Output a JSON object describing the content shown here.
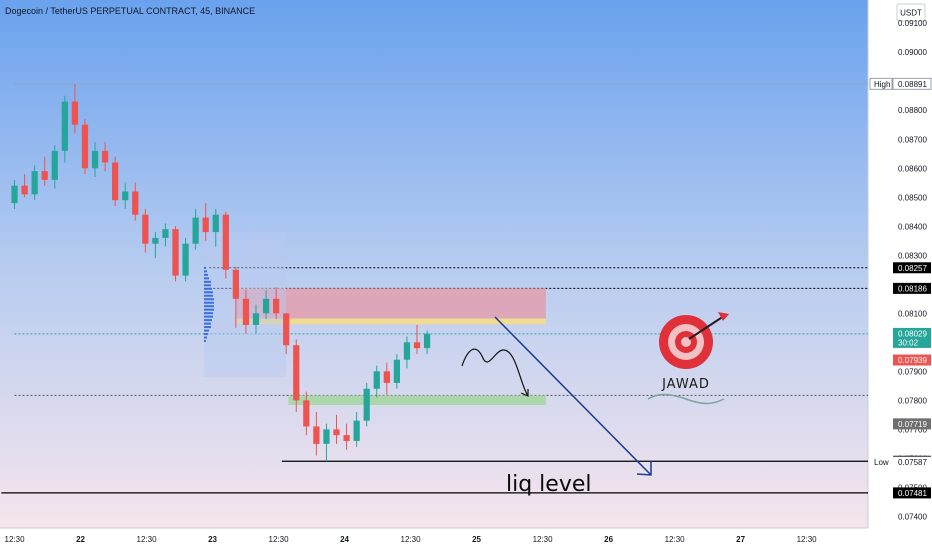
{
  "chart_data": {
    "type": "candlestick",
    "title": "Dogecoin / TetherUS PERPETUAL CONTRACT, 45, BINANCE",
    "currency_button": "USDT",
    "y_ticks": [
      "0.09100",
      "0.09000",
      "0.08900",
      "0.08800",
      "0.08700",
      "0.08600",
      "0.08500",
      "0.08400",
      "0.08300",
      "0.08100",
      "0.07900",
      "0.07800",
      "0.07700",
      "0.07600",
      "0.07500",
      "0.07400"
    ],
    "x_ticks": [
      {
        "t": 0,
        "label": "12:30",
        "bold": false
      },
      {
        "t": 1,
        "label": "22",
        "bold": true
      },
      {
        "t": 2,
        "label": "12:30",
        "bold": false
      },
      {
        "t": 3,
        "label": "23",
        "bold": true
      },
      {
        "t": 4,
        "label": "12:30",
        "bold": false
      },
      {
        "t": 5,
        "label": "24",
        "bold": true
      },
      {
        "t": 6,
        "label": "12:30",
        "bold": false
      },
      {
        "t": 7,
        "label": "25",
        "bold": true
      },
      {
        "t": 8,
        "label": "12:30",
        "bold": false
      },
      {
        "t": 9,
        "label": "26",
        "bold": true
      },
      {
        "t": 10,
        "label": "12:30",
        "bold": false
      },
      {
        "t": 11,
        "label": "27",
        "bold": true
      },
      {
        "t": 12,
        "label": "12:30",
        "bold": false
      }
    ],
    "price_labels": [
      {
        "label": "High",
        "value": "0.08891",
        "bg": "#ffffff",
        "fg": "#131722",
        "border": "#9aa0aa"
      },
      {
        "value": "0.08257",
        "bg": "#000000",
        "fg": "#ffffff"
      },
      {
        "value": "0.08186",
        "bg": "#000000",
        "fg": "#ffffff"
      },
      {
        "value": "0.08029",
        "sub": "30:02",
        "bg": "#26a69a",
        "fg": "#ffffff"
      },
      {
        "value": "0.07939",
        "bg": "#ef5350",
        "fg": "#ffffff"
      },
      {
        "value": "0.07719",
        "bg": "#6f6f6f",
        "fg": "#ffffff"
      },
      {
        "value": "0.07590",
        "bg": "#000000",
        "fg": "#ffffff"
      },
      {
        "label": "Low",
        "value": "0.07587",
        "bg": "#ffffff",
        "fg": "#131722"
      },
      {
        "value": "0.07481",
        "bg": "#000000",
        "fg": "#ffffff"
      }
    ],
    "horizontal_levels": [
      {
        "value": 0.08891,
        "style": "dotted",
        "color": "#9aa0aa",
        "from_t": 0
      },
      {
        "value": 0.08257,
        "style": "dotted",
        "color": "#000000",
        "from_t": 2.95
      },
      {
        "value": 0.08186,
        "style": "dotted",
        "color": "#000000",
        "from_t": 2.95
      },
      {
        "value": 0.08029,
        "style": "dotted",
        "color": "#26a69a",
        "from_t": 0
      },
      {
        "value": 0.07817,
        "style": "dotted",
        "color": "#555555",
        "from_t": 0
      },
      {
        "value": 0.0759,
        "style": "solid",
        "color": "#000000",
        "from_t": 4.05
      },
      {
        "value": 0.07481,
        "style": "solid",
        "color": "#000000",
        "from_t": -0.2
      }
    ],
    "zones": [
      {
        "name": "supply",
        "x0": 3.35,
        "x1": 8.05,
        "y0": 0.08186,
        "y1": 0.08082,
        "color": "#e0a2b3"
      },
      {
        "name": "supply-edge",
        "x0": 3.35,
        "x1": 8.05,
        "y0": 0.08082,
        "y1": 0.08062,
        "color": "#f4dc86"
      },
      {
        "name": "demand",
        "x0": 4.15,
        "x1": 8.05,
        "y0": 0.07817,
        "y1": 0.07784,
        "color": "#a6d6a3"
      }
    ],
    "candles": [
      [
        0.0848,
        0.0856,
        0.0846,
        0.0854
      ],
      [
        0.0854,
        0.0858,
        0.085,
        0.0851
      ],
      [
        0.0851,
        0.0861,
        0.0849,
        0.0859
      ],
      [
        0.0859,
        0.0864,
        0.0854,
        0.0856
      ],
      [
        0.0856,
        0.0868,
        0.0853,
        0.0866
      ],
      [
        0.0866,
        0.0885,
        0.0862,
        0.0883
      ],
      [
        0.0883,
        0.0889,
        0.0872,
        0.0875
      ],
      [
        0.0875,
        0.0877,
        0.0858,
        0.086
      ],
      [
        0.086,
        0.0869,
        0.0857,
        0.0866
      ],
      [
        0.0866,
        0.0869,
        0.0859,
        0.0862
      ],
      [
        0.0862,
        0.0864,
        0.0847,
        0.0849
      ],
      [
        0.0849,
        0.0855,
        0.0846,
        0.0852
      ],
      [
        0.0852,
        0.0855,
        0.0842,
        0.0844
      ],
      [
        0.0844,
        0.0846,
        0.0831,
        0.0834
      ],
      [
        0.0834,
        0.0838,
        0.0829,
        0.0836
      ],
      [
        0.0836,
        0.0841,
        0.0833,
        0.0839
      ],
      [
        0.0839,
        0.084,
        0.0821,
        0.0823
      ],
      [
        0.0823,
        0.0836,
        0.0821,
        0.0834
      ],
      [
        0.0834,
        0.0846,
        0.0832,
        0.0843
      ],
      [
        0.0843,
        0.0848,
        0.0835,
        0.0838
      ],
      [
        0.0838,
        0.0846,
        0.0833,
        0.0844
      ],
      [
        0.0844,
        0.0845,
        0.0822,
        0.0825
      ],
      [
        0.0825,
        0.0826,
        0.0805,
        0.0815
      ],
      [
        0.0815,
        0.0818,
        0.0803,
        0.0806
      ],
      [
        0.0806,
        0.0813,
        0.0803,
        0.081
      ],
      [
        0.081,
        0.0818,
        0.0808,
        0.0815
      ],
      [
        0.0815,
        0.0819,
        0.0808,
        0.081
      ],
      [
        0.081,
        0.081,
        0.0796,
        0.0799
      ],
      [
        0.0799,
        0.0801,
        0.0776,
        0.078
      ],
      [
        0.078,
        0.0783,
        0.0768,
        0.0771
      ],
      [
        0.0771,
        0.0776,
        0.0761,
        0.0765
      ],
      [
        0.0765,
        0.0772,
        0.0759,
        0.077
      ],
      [
        0.077,
        0.0775,
        0.0765,
        0.0768
      ],
      [
        0.0768,
        0.0772,
        0.0763,
        0.0766
      ],
      [
        0.0766,
        0.0776,
        0.0764,
        0.0773
      ],
      [
        0.0773,
        0.0786,
        0.0771,
        0.0784
      ],
      [
        0.0784,
        0.0792,
        0.0781,
        0.079
      ],
      [
        0.079,
        0.0793,
        0.0782,
        0.0786
      ],
      [
        0.0786,
        0.0796,
        0.0784,
        0.0794
      ],
      [
        0.0794,
        0.0802,
        0.0791,
        0.08
      ],
      [
        0.08,
        0.0806,
        0.0796,
        0.0798
      ],
      [
        0.0798,
        0.0804,
        0.0796,
        0.0803
      ]
    ],
    "candle_start_t": 0,
    "candle_end_t": 6.25,
    "y_range": [
      0.0736,
      0.0918
    ],
    "x_range": [
      -0.22,
      12.93
    ]
  },
  "annotation": {
    "liq_text": "liq level"
  },
  "logo": {
    "text": "JAWAD"
  },
  "colors": {
    "up": "#26a69a",
    "down": "#ef5350",
    "arrow": "#1a3a8f"
  }
}
